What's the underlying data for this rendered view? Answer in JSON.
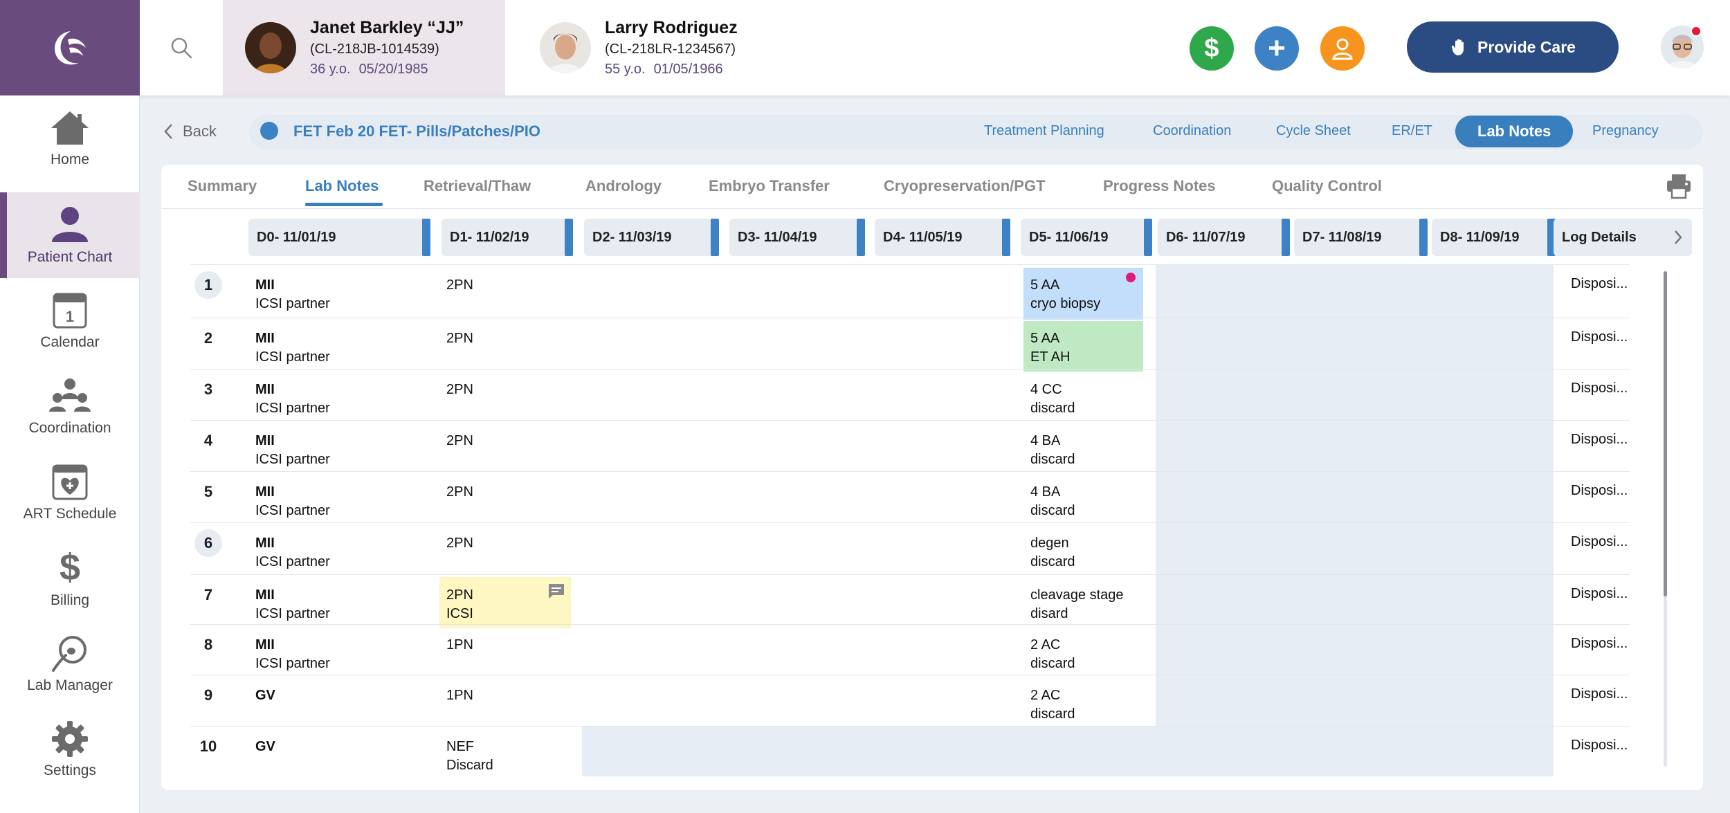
{
  "app": {
    "logo": "moon-logo-icon"
  },
  "patients": [
    {
      "name": "Janet Barkley “JJ”",
      "id": "(CL-218JB-1014539)",
      "age": "36 y.o.",
      "dob": "05/20/1985"
    },
    {
      "name": "Larry Rodriguez",
      "id": "(CL-218LR-1234567)",
      "age": "55 y.o.",
      "dob": "01/05/1966"
    }
  ],
  "actions": {
    "billing_symbol": "$",
    "add_symbol": "+",
    "provide_care_label": "Provide Care"
  },
  "colors": {
    "billing": "#2ea84a",
    "add": "#3d82c4",
    "person": "#f7941d",
    "brand": "#6a4b7d",
    "accent": "#3a7fbd"
  },
  "sidebar": {
    "items": [
      {
        "label": "Home",
        "icon": "home-icon"
      },
      {
        "label": "Patient Chart",
        "icon": "patient-icon"
      },
      {
        "label": "Calendar",
        "icon": "calendar-icon",
        "day": "1"
      },
      {
        "label": "Coordination",
        "icon": "coordination-icon"
      },
      {
        "label": "ART Schedule",
        "icon": "art-schedule-icon"
      },
      {
        "label": "Billing",
        "icon": "billing-icon",
        "symbol": "$"
      },
      {
        "label": "Lab Manager",
        "icon": "lab-manager-icon"
      },
      {
        "label": "Settings",
        "icon": "gear-icon"
      }
    ]
  },
  "cycle": {
    "back_label": "Back",
    "name": "FET Feb 20 FET- Pills/Patches/PIO",
    "tabs": [
      "Treatment Planning",
      "Coordination",
      "Cycle Sheet",
      "ER/ET",
      "Lab Notes",
      "Pregnancy"
    ]
  },
  "main": {
    "tabs": [
      "Summary",
      "Lab Notes",
      "Retrieval/Thaw",
      "Andrology",
      "Embryo Transfer",
      "Cryopreservation/PGT",
      "Progress Notes",
      "Quality Control"
    ],
    "days": [
      {
        "d": "D0",
        "date": " - 11/01/19"
      },
      {
        "d": "D1",
        "date": " - 11/02/19"
      },
      {
        "d": "D2",
        "date": " - 11/03/19"
      },
      {
        "d": "D3",
        "date": " - 11/04/19"
      },
      {
        "d": "D4",
        "date": " - 11/05/19"
      },
      {
        "d": "D5",
        "date": " - 11/06/19"
      },
      {
        "d": "D6",
        "date": " - 11/07/19"
      },
      {
        "d": "D7",
        "date": " - 11/08/19"
      },
      {
        "d": "D8",
        "date": " - 11/09/19"
      }
    ],
    "log_details_label": "Log Details",
    "rows": [
      {
        "n": "1",
        "d0a": "MII",
        "d0b": "ICSI partner",
        "d1a": "2PN",
        "d1b": "",
        "d5a": "5 AA",
        "d5b": "cryo biopsy",
        "disp": "Disposi..."
      },
      {
        "n": "2",
        "d0a": "MII",
        "d0b": "ICSI partner",
        "d1a": "2PN",
        "d1b": "",
        "d5a": "5 AA",
        "d5b": "ET AH",
        "disp": "Disposi..."
      },
      {
        "n": "3",
        "d0a": "MII",
        "d0b": "ICSI partner",
        "d1a": "2PN",
        "d1b": "",
        "d5a": "4 CC",
        "d5b": "discard",
        "disp": "Disposi..."
      },
      {
        "n": "4",
        "d0a": "MII",
        "d0b": "ICSI partner",
        "d1a": "2PN",
        "d1b": "",
        "d5a": "4 BA",
        "d5b": "discard",
        "disp": "Disposi..."
      },
      {
        "n": "5",
        "d0a": "MII",
        "d0b": "ICSI partner",
        "d1a": "2PN",
        "d1b": "",
        "d5a": "4 BA",
        "d5b": "discard",
        "disp": "Disposi..."
      },
      {
        "n": "6",
        "d0a": "MII",
        "d0b": "ICSI partner",
        "d1a": "2PN",
        "d1b": "",
        "d5a": "degen",
        "d5b": "discard",
        "disp": "Disposi..."
      },
      {
        "n": "7",
        "d0a": "MII",
        "d0b": "ICSI partner",
        "d1a": "2PN",
        "d1b": "ICSI",
        "d5a": "cleavage stage",
        "d5b": "disard",
        "disp": "Disposi..."
      },
      {
        "n": "8",
        "d0a": "MII",
        "d0b": "ICSI partner",
        "d1a": "1PN",
        "d1b": "",
        "d5a": "2 AC",
        "d5b": "discard",
        "disp": "Disposi..."
      },
      {
        "n": "9",
        "d0a": "GV",
        "d0b": "",
        "d1a": "1PN",
        "d1b": "",
        "d5a": "2 AC",
        "d5b": "discard",
        "disp": "Disposi..."
      },
      {
        "n": "10",
        "d0a": "GV",
        "d0b": "",
        "d1a": "NEF",
        "d1b": "Discard",
        "d5a": "",
        "d5b": "",
        "disp": "Disposi..."
      }
    ]
  }
}
